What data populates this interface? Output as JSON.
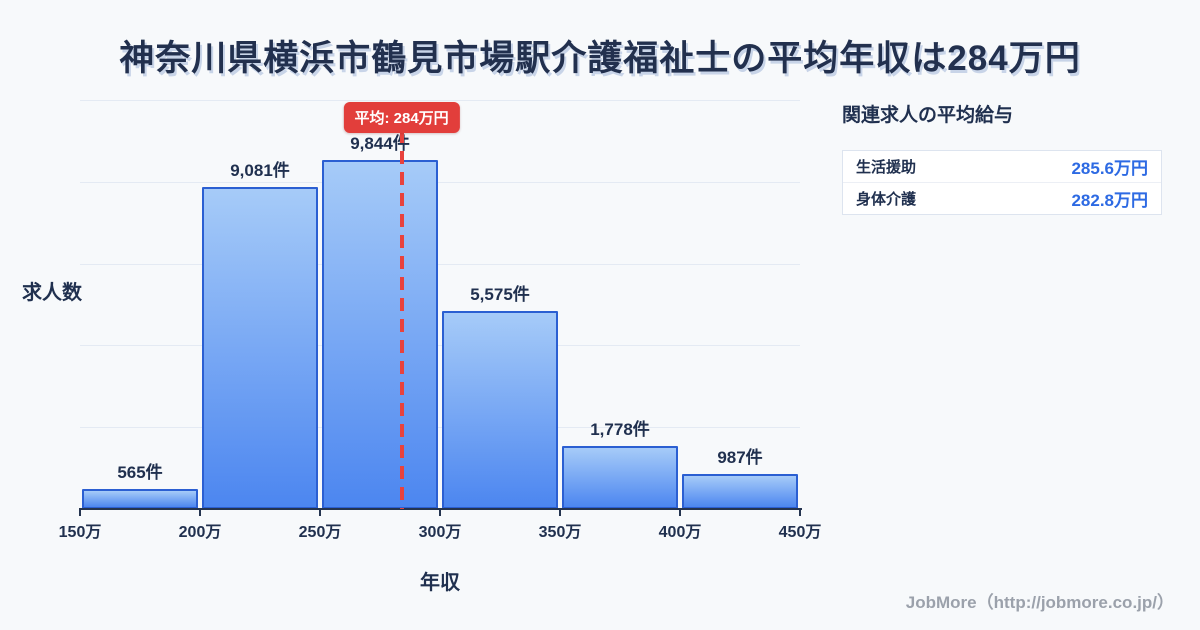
{
  "title": "神奈川県横浜市鶴見市場駅介護福祉士の平均年収は284万円",
  "chart_data": {
    "type": "bar",
    "histogram": true,
    "title": "神奈川県横浜市鶴見市場駅介護福祉士の平均年収は284万円",
    "xlabel": "年収",
    "ylabel": "求人数",
    "bin_edge_labels": [
      "150万",
      "200万",
      "250万",
      "300万",
      "350万",
      "400万",
      "450万"
    ],
    "bin_edges_man_yen": [
      150,
      200,
      250,
      300,
      350,
      400,
      450
    ],
    "values": [
      565,
      9081,
      9844,
      5575,
      1778,
      987
    ],
    "value_labels": [
      "565件",
      "9,081件",
      "9,844件",
      "5,575件",
      "1,778件",
      "987件"
    ],
    "mean_man_yen": 284,
    "mean_label": "平均: 284万円",
    "x_range_man_yen": [
      150,
      450
    ],
    "gridline_count": 5,
    "grid_on": true,
    "legend": "none",
    "colors": {
      "bar_gradient_top": "#a6cbf8",
      "bar_gradient_bottom": "#4c86f0",
      "bar_border": "#2b5fd2",
      "mean_line_red": "#e8423d",
      "badge_red": "#e23e3b",
      "text_navy": "#20304f",
      "value_blue": "#2d6ae3",
      "background": "#f7f9fb",
      "gridline": "#e4eaf3"
    }
  },
  "side_panel": {
    "heading": "関連求人の平均給与",
    "rows": [
      {
        "label": "生活援助",
        "value": "285.6万円"
      },
      {
        "label": "身体介護",
        "value": "282.8万円"
      }
    ]
  },
  "footer": {
    "credit": "JobMore（http://jobmore.co.jp/）"
  }
}
